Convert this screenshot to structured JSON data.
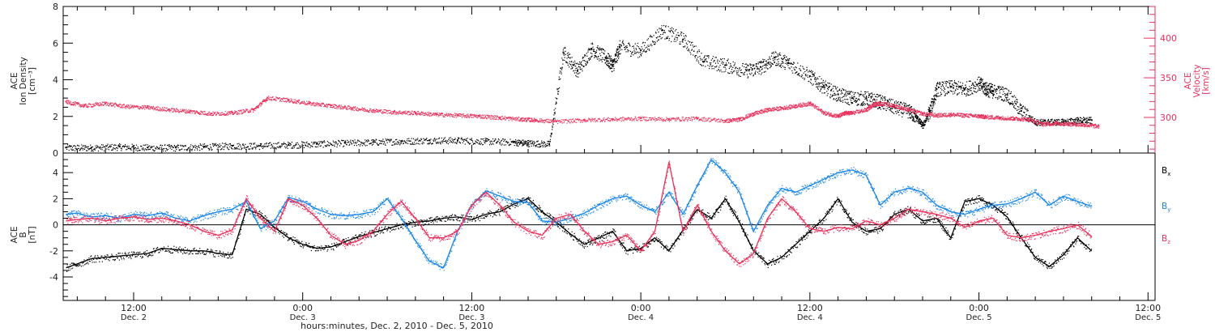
{
  "colors": {
    "black": "#000000",
    "red": "#e8325d",
    "blue": "#1a86e8",
    "axis": "#000000"
  },
  "x_footer": "hours:minutes, Dec. 2, 2010 - Dec. 5, 2010",
  "x_ticks": [
    {
      "time": "12:00",
      "day": "Dec. 2"
    },
    {
      "time": "0:00",
      "day": "Dec. 3"
    },
    {
      "time": "12:00",
      "day": "Dec. 3"
    },
    {
      "time": "0:00",
      "day": "Dec. 4"
    },
    {
      "time": "12:00",
      "day": "Dec. 4"
    },
    {
      "time": "0:00",
      "day": "Dec. 5"
    },
    {
      "time": "12:00",
      "day": "Dec. 5"
    }
  ],
  "chart_data": [
    {
      "type": "scatter",
      "xlim": [
        7.0,
        84.5
      ],
      "x_unit": "hours since Dec. 2, 2010 0:00",
      "ylabel_left": [
        "ACE",
        "Ion Density",
        "[cm⁻³]"
      ],
      "ylabel_right": [
        "ACE",
        "Velocity",
        "[km/s]"
      ],
      "ylim_left": [
        0,
        8
      ],
      "ylim_right": [
        255,
        440
      ],
      "yticks_left": [
        "0",
        "2",
        "4",
        "6",
        "8"
      ],
      "yticks_right": [
        "300",
        "350",
        "400"
      ],
      "series": [
        {
          "axis": "left",
          "color": "#000000",
          "x": [
            7.2,
            9,
            11,
            13,
            15,
            17,
            19,
            21,
            23,
            25,
            27,
            29,
            31,
            33,
            35,
            37,
            39,
            40,
            41.5,
            42.5,
            43.5,
            44.5,
            45.5,
            46,
            46.5,
            48,
            49.5,
            51,
            52.5,
            54,
            55.5,
            56.5,
            57.5,
            58.5,
            60,
            61,
            62,
            63,
            64,
            65,
            66,
            67,
            67.5,
            68,
            68.5,
            69,
            70,
            71,
            72,
            72.5,
            73,
            74,
            75,
            76,
            77,
            78,
            79,
            80
          ],
          "y": [
            0.3,
            0.3,
            0.35,
            0.3,
            0.3,
            0.35,
            0.4,
            0.4,
            0.45,
            0.5,
            0.55,
            0.6,
            0.65,
            0.7,
            0.7,
            0.65,
            0.6,
            0.55,
            0.5,
            5.5,
            4.5,
            5.7,
            5.2,
            4.8,
            5.8,
            5.6,
            6.7,
            6.2,
            5.0,
            4.8,
            4.5,
            4.7,
            5.2,
            4.9,
            4.2,
            3.6,
            3.2,
            3.0,
            3.0,
            2.8,
            2.5,
            2.3,
            2.0,
            1.5,
            2.3,
            3.5,
            3.6,
            3.5,
            3.8,
            3.5,
            3.4,
            3.2,
            2.3,
            1.7,
            1.7,
            1.7,
            1.8,
            1.8
          ]
        },
        {
          "axis": "right",
          "color": "#e8325d",
          "x": [
            7.2,
            8.5,
            10,
            11.5,
            13,
            14.5,
            16,
            17.5,
            19,
            20.5,
            21.5,
            23,
            24.5,
            26,
            27.5,
            29,
            30.5,
            32,
            33.5,
            35,
            36.5,
            38,
            39.5,
            40.5,
            42,
            44,
            46,
            48,
            50,
            52,
            54,
            55,
            56,
            57,
            58,
            59,
            60,
            61,
            62,
            62.5,
            63,
            64,
            64.5,
            65,
            66,
            67,
            68,
            69,
            70,
            71,
            72,
            72.5,
            73.5,
            74.5,
            75.5,
            76.5,
            77.5,
            78.5,
            79.5,
            80.5
          ],
          "y": [
            320,
            315,
            318,
            314,
            313,
            310,
            308,
            305,
            306,
            310,
            325,
            322,
            318,
            315,
            312,
            309,
            307,
            306,
            304,
            303,
            302,
            300,
            298,
            297,
            295,
            297,
            298,
            299,
            298,
            299,
            296,
            298,
            305,
            310,
            312,
            315,
            318,
            306,
            302,
            306,
            306,
            310,
            317,
            318,
            315,
            310,
            305,
            303,
            304,
            303,
            302,
            301,
            300,
            299,
            298,
            292,
            293,
            292,
            291,
            289
          ]
        }
      ]
    },
    {
      "type": "line",
      "xlim": [
        7.0,
        84.5
      ],
      "ylabel": [
        "ACE",
        "B",
        "[nT]"
      ],
      "ylim": [
        -5.8,
        5.5
      ],
      "yticks": [
        "-4",
        "-2",
        "0",
        "2",
        "4"
      ],
      "series": [
        {
          "name": "Bx",
          "color": "#000000",
          "x": [
            7.2,
            8,
            9,
            10,
            11,
            12,
            13,
            14,
            15,
            16,
            17,
            18,
            19,
            20,
            21,
            22,
            23,
            24,
            25,
            26,
            27,
            28,
            29,
            30,
            31,
            32,
            33,
            34,
            35,
            36,
            37,
            38,
            39,
            40,
            41,
            42,
            43,
            44,
            45,
            46,
            47,
            48,
            49,
            50,
            51,
            52,
            53,
            54,
            55,
            56,
            57,
            58,
            59,
            60,
            61,
            62,
            63,
            64,
            65,
            66,
            67,
            68,
            69,
            70,
            71,
            72,
            73,
            74,
            75,
            76,
            77,
            78,
            79,
            80
          ],
          "y": [
            -3.3,
            -3.0,
            -2.6,
            -2.5,
            -2.4,
            -2.3,
            -2.2,
            -1.8,
            -1.9,
            -2.0,
            -2.0,
            -2.2,
            -2.3,
            1.2,
            0.8,
            -0.2,
            -1.0,
            -1.5,
            -1.8,
            -1.7,
            -1.3,
            -0.9,
            -0.6,
            -0.3,
            0.0,
            0.2,
            0.3,
            0.5,
            0.6,
            0.4,
            0.8,
            1.0,
            1.6,
            2.0,
            1.0,
            0.2,
            -0.7,
            -1.5,
            -1.0,
            -0.5,
            -2.0,
            -1.8,
            -1.0,
            -2.0,
            -0.4,
            1.2,
            0.5,
            2.0,
            0.2,
            -2.0,
            -3.0,
            -2.5,
            -1.5,
            -0.5,
            0.5,
            2.0,
            0.2,
            -0.5,
            -0.3,
            0.8,
            1.2,
            0.3,
            0.5,
            -1.0,
            1.8,
            2.0,
            1.5,
            0.6,
            -1.0,
            -2.5,
            -3.2,
            -2.3,
            -1.0,
            -2.0
          ]
        },
        {
          "name": "By",
          "color": "#1a86e8",
          "x": [
            7.2,
            8,
            9,
            10,
            11,
            12,
            13,
            14,
            15,
            16,
            17,
            18,
            19,
            20,
            21,
            22,
            23,
            24,
            25,
            26,
            27,
            28,
            29,
            30,
            31,
            32,
            33,
            34,
            35,
            36,
            37,
            38,
            39,
            40,
            41,
            42,
            43,
            44,
            45,
            46,
            47,
            48,
            49,
            50,
            51,
            52,
            53,
            54,
            55,
            56,
            57,
            58,
            59,
            60,
            61,
            62,
            63,
            64,
            65,
            66,
            67,
            68,
            69,
            70,
            71,
            72,
            73,
            74,
            75,
            76,
            77,
            78,
            79,
            80
          ],
          "y": [
            0.8,
            0.9,
            0.6,
            0.7,
            0.5,
            0.8,
            0.7,
            0.9,
            0.5,
            0.3,
            0.7,
            1.0,
            1.2,
            1.8,
            -0.3,
            0.3,
            2.1,
            1.8,
            1.2,
            0.8,
            0.7,
            0.8,
            1.0,
            2.0,
            0.5,
            -1.2,
            -2.8,
            -3.3,
            -0.5,
            1.5,
            2.6,
            2.2,
            1.8,
            1.7,
            0.3,
            0.2,
            0.5,
            0.9,
            1.5,
            2.0,
            2.2,
            1.5,
            1.0,
            2.5,
            0.8,
            3.0,
            5.0,
            4.0,
            2.5,
            -0.5,
            1.5,
            2.8,
            2.5,
            3.0,
            3.5,
            4.0,
            4.2,
            3.8,
            1.5,
            2.5,
            2.8,
            2.5,
            1.5,
            1.0,
            0.8,
            1.2,
            1.5,
            1.6,
            2.0,
            2.5,
            1.5,
            2.2,
            1.8,
            1.4
          ]
        },
        {
          "name": "Bz",
          "color": "#e8325d",
          "x": [
            7.2,
            8,
            9,
            10,
            11,
            12,
            13,
            14,
            15,
            16,
            17,
            18,
            19,
            20,
            21,
            22,
            23,
            24,
            25,
            26,
            27,
            28,
            29,
            30,
            31,
            32,
            33,
            34,
            35,
            36,
            37,
            38,
            39,
            40,
            41,
            42,
            43,
            44,
            45,
            46,
            47,
            48,
            49,
            50,
            51,
            52,
            53,
            54,
            55,
            56,
            57,
            58,
            59,
            60,
            61,
            62,
            63,
            64,
            65,
            66,
            67,
            68,
            69,
            70,
            71,
            72,
            73,
            74,
            75,
            76,
            77,
            78,
            79,
            80
          ],
          "y": [
            0.3,
            0.4,
            0.5,
            0.3,
            0.5,
            0.6,
            0.4,
            0.5,
            0.3,
            0.0,
            -0.5,
            -0.8,
            -0.4,
            2.0,
            0.5,
            -0.5,
            2.0,
            1.5,
            0.5,
            -0.8,
            -1.5,
            -1.2,
            -0.5,
            0.8,
            1.8,
            0.5,
            -1.0,
            -1.0,
            -0.5,
            1.5,
            2.5,
            1.5,
            0.2,
            -0.5,
            -0.8,
            0.5,
            0.8,
            -0.5,
            -1.5,
            -1.3,
            -0.8,
            -2.0,
            -0.5,
            4.8,
            -0.5,
            1.5,
            -0.5,
            -2.0,
            -3.0,
            -2.2,
            0.5,
            2.0,
            1.0,
            -0.3,
            -0.5,
            -0.2,
            -0.3,
            0.3,
            0.0,
            0.5,
            1.2,
            1.0,
            0.8,
            0.5,
            -0.2,
            0.3,
            0.5,
            -0.8,
            -1.0,
            -0.8,
            -0.5,
            -0.3,
            0.0,
            -0.9
          ]
        }
      ]
    }
  ]
}
